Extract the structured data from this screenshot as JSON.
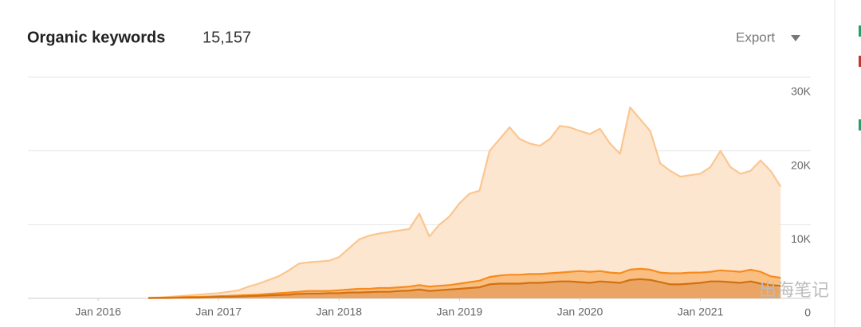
{
  "chart_data": {
    "type": "area",
    "title": "Organic keywords",
    "total_keywords": {
      "value": 15157,
      "label": "15,157"
    },
    "export_label": "Export",
    "watermark": "出海笔记",
    "x": [
      "2016-06",
      "2016-07",
      "2016-08",
      "2016-09",
      "2016-10",
      "2016-11",
      "2016-12",
      "2017-01",
      "2017-02",
      "2017-03",
      "2017-04",
      "2017-05",
      "2017-06",
      "2017-07",
      "2017-08",
      "2017-09",
      "2017-10",
      "2017-11",
      "2017-12",
      "2018-01",
      "2018-02",
      "2018-03",
      "2018-04",
      "2018-05",
      "2018-06",
      "2018-07",
      "2018-08",
      "2018-09",
      "2018-10",
      "2018-11",
      "2018-12",
      "2019-01",
      "2019-02",
      "2019-03",
      "2019-04",
      "2019-05",
      "2019-06",
      "2019-07",
      "2019-08",
      "2019-09",
      "2019-10",
      "2019-11",
      "2019-12",
      "2020-01",
      "2020-02",
      "2020-03",
      "2020-04",
      "2020-05",
      "2020-06",
      "2020-07",
      "2020-08",
      "2020-09",
      "2020-10",
      "2020-11",
      "2020-12",
      "2021-01",
      "2021-02",
      "2021-03",
      "2021-04",
      "2021-05",
      "2021-06",
      "2021-07",
      "2021-08",
      "2021-09"
    ],
    "series": [
      {
        "color": "#fbc68f",
        "fill": "#fde3cb",
        "values": [
          100,
          100,
          200,
          300,
          400,
          500,
          600,
          700,
          900,
          1100,
          1600,
          2000,
          2500,
          3000,
          3800,
          4700,
          4900,
          5000,
          5100,
          5600,
          6800,
          8000,
          8500,
          8800,
          9000,
          9200,
          9400,
          11500,
          8400,
          10000,
          11100,
          12900,
          14200,
          14600,
          20000,
          21600,
          23200,
          21600,
          21000,
          20700,
          21600,
          23400,
          23200,
          22700,
          22300,
          23000,
          21000,
          19600,
          25900,
          24300,
          22700,
          18300,
          17300,
          16500,
          16700,
          16900,
          17800,
          20000,
          17800,
          16900,
          17300,
          18700,
          17300,
          15157
        ]
      },
      {
        "color": "#f68b1f",
        "fill": "#f9b978",
        "values": [
          50,
          100,
          100,
          150,
          200,
          200,
          250,
          300,
          350,
          400,
          450,
          500,
          600,
          700,
          800,
          900,
          1000,
          1000,
          1000,
          1100,
          1200,
          1300,
          1300,
          1400,
          1400,
          1500,
          1600,
          1800,
          1600,
          1700,
          1800,
          2000,
          2200,
          2400,
          2900,
          3100,
          3200,
          3200,
          3300,
          3300,
          3400,
          3500,
          3600,
          3700,
          3600,
          3700,
          3500,
          3400,
          3900,
          4000,
          3900,
          3500,
          3400,
          3400,
          3500,
          3500,
          3600,
          3800,
          3700,
          3600,
          3900,
          3600,
          3000,
          2800
        ]
      },
      {
        "color": "#d2700f",
        "fill": "#e8a262",
        "values": [
          30,
          50,
          50,
          80,
          100,
          100,
          150,
          200,
          200,
          250,
          300,
          350,
          400,
          450,
          500,
          600,
          650,
          650,
          700,
          700,
          800,
          800,
          850,
          900,
          900,
          1000,
          1050,
          1200,
          1000,
          1100,
          1200,
          1300,
          1400,
          1500,
          1900,
          2000,
          2000,
          2000,
          2100,
          2100,
          2200,
          2300,
          2300,
          2200,
          2100,
          2300,
          2200,
          2100,
          2500,
          2600,
          2500,
          2200,
          1900,
          1900,
          2000,
          2100,
          2300,
          2300,
          2200,
          2100,
          2300,
          2000,
          1800,
          1700
        ]
      }
    ],
    "xlim": [
      "2015-06",
      "2021-12"
    ],
    "xticks": [
      {
        "value": "2016-01",
        "label": "Jan 2016"
      },
      {
        "value": "2017-01",
        "label": "Jan 2017"
      },
      {
        "value": "2018-01",
        "label": "Jan 2018"
      },
      {
        "value": "2019-01",
        "label": "Jan 2019"
      },
      {
        "value": "2020-01",
        "label": "Jan 2020"
      },
      {
        "value": "2021-01",
        "label": "Jan 2021"
      }
    ],
    "ylim": [
      0,
      30000
    ],
    "yticks": [
      0,
      {
        "value": 10000,
        "label": "10K"
      },
      {
        "value": 20000,
        "label": "20K"
      },
      {
        "value": 30000,
        "label": "30K"
      }
    ],
    "grid": true
  }
}
